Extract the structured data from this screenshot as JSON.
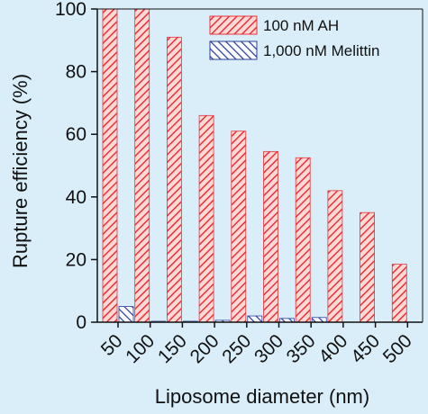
{
  "chart_data": {
    "type": "bar",
    "categories": [
      "50",
      "100",
      "150",
      "200",
      "250",
      "300",
      "350",
      "400",
      "450",
      "500"
    ],
    "series": [
      {
        "name": "100 nM AH",
        "values": [
          100,
          100,
          91,
          66,
          61,
          54.5,
          52.5,
          42,
          35,
          18.5
        ],
        "color": "#e8323a",
        "fill": "#ffd9d6",
        "pattern": "diagonal-forward"
      },
      {
        "name": "1,000 nM Melittin",
        "values": [
          5,
          0.3,
          0.3,
          0.6,
          2,
          1.2,
          1.5,
          0,
          0,
          0
        ],
        "color": "#2b3f9e",
        "fill": "#ffffff",
        "pattern": "diagonal-back"
      }
    ],
    "xlabel": "Liposome diameter (nm)",
    "ylabel": "Rupture efficiency (%)",
    "ylim": [
      0,
      100
    ],
    "yticks": [
      "0",
      "20",
      "40",
      "60",
      "80",
      "100"
    ],
    "grid": false,
    "legend_position": "top-right",
    "background": "#d9eef9"
  }
}
